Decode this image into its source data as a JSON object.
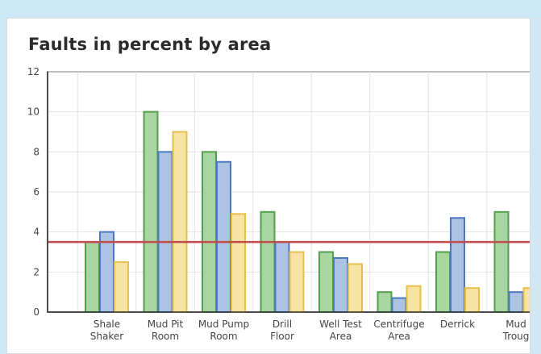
{
  "chart_data": {
    "type": "bar",
    "title": "Faults in percent by area",
    "categories": [
      [
        "Shale",
        "Shaker"
      ],
      [
        "Mud Pit",
        "Room"
      ],
      [
        "Mud Pump",
        "Room"
      ],
      [
        "Drill",
        "Floor"
      ],
      [
        "Well Test",
        "Area"
      ],
      [
        "Centrifuge",
        "Area"
      ],
      [
        "Derrick",
        ""
      ],
      [
        "Mud",
        "Troug"
      ]
    ],
    "series": [
      {
        "values": [
          3.5,
          10,
          8,
          5,
          3,
          1,
          3,
          5
        ],
        "fill": "#a9d5a2",
        "stroke": "#53a04c"
      },
      {
        "values": [
          4,
          8,
          7.5,
          3.5,
          2.7,
          0.7,
          4.7,
          1
        ],
        "fill": "#adc3e3",
        "stroke": "#4c78c0"
      },
      {
        "values": [
          2.5,
          9,
          4.9,
          3,
          2.4,
          1.3,
          1.2,
          1.2
        ],
        "fill": "#f7e3a4",
        "stroke": "#e6c04c"
      }
    ],
    "reference_line": {
      "value": 3.5,
      "color": "#c24b4b"
    },
    "y_ticks": [
      0,
      2,
      4,
      6,
      8,
      10,
      12
    ],
    "ylim": [
      0,
      12
    ],
    "grid": true,
    "legend": "none"
  }
}
